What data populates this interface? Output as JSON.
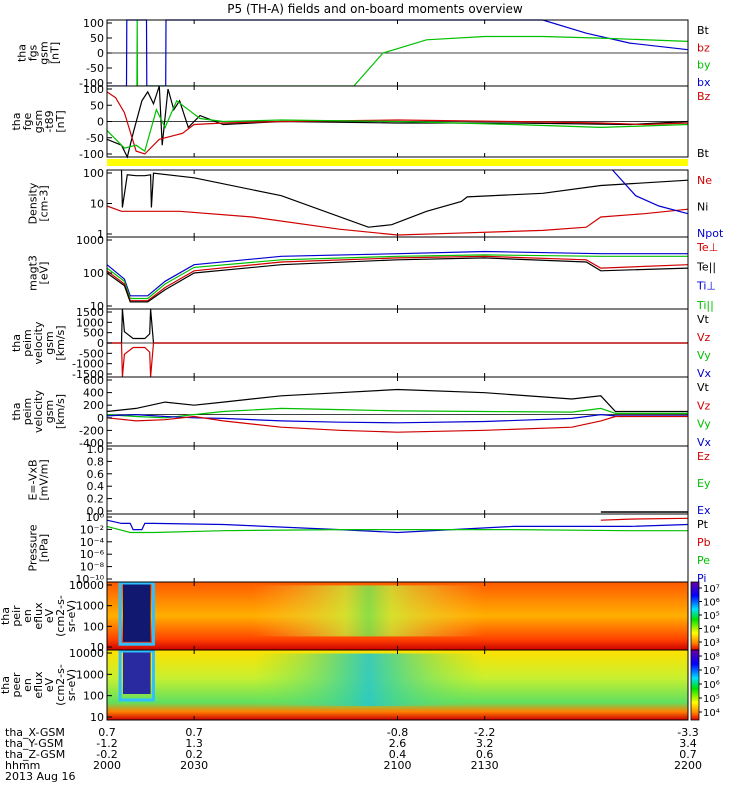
{
  "title": "P5 (TH-A) fields and on-board moments overview",
  "footer": {
    "rows": [
      {
        "label": "tha_X-GSM",
        "values": [
          "0.7",
          "0.7",
          "-0.8",
          "-2.2",
          "-3.3"
        ]
      },
      {
        "label": "tha_Y-GSM",
        "values": [
          "-1.2",
          "1.3",
          "2.6",
          "3.2",
          "3.4"
        ]
      },
      {
        "label": "tha_Z-GSM",
        "values": [
          "-0.2",
          "0.2",
          "0.4",
          "0.6",
          "0.7"
        ]
      },
      {
        "label": "hhmm",
        "values": [
          "2000",
          "2030",
          "2100",
          "2130",
          "2200"
        ]
      }
    ],
    "date": "2013 Aug 16"
  },
  "chart_data": [
    {
      "id": "fgs",
      "type": "line",
      "ylabel": [
        "tha",
        "fgs",
        "gsm",
        "[nT]"
      ],
      "ylim": [
        -100,
        100
      ],
      "yticks": [
        "100",
        "50",
        "0",
        "-50",
        "-100"
      ],
      "legend": [
        {
          "name": "Bt",
          "color": "#000000"
        },
        {
          "name": "bz",
          "color": "#d00000"
        },
        {
          "name": "by",
          "color": "#00c000"
        },
        {
          "name": "bx",
          "color": "#0000d0"
        }
      ],
      "series": [
        {
          "name": "bx",
          "color": "#0000d0",
          "x": [
            2000,
            2006.7,
            2006.8,
            2013.6,
            2013.7,
            2020.2,
            2020.3,
            2150,
            2165,
            2180,
            2200
          ],
          "y": [
            -100,
            -100,
            100,
            100,
            -100,
            -100,
            100,
            100,
            60,
            30,
            10
          ]
        },
        {
          "name": "by",
          "color": "#00c000",
          "x": [
            2010.3,
            2010.4,
            2010.5,
            2085,
            2095,
            2110,
            2130,
            2150,
            2170,
            2200
          ],
          "y": [
            -100,
            100,
            -100,
            -100,
            0,
            40,
            50,
            50,
            45,
            35
          ]
        }
      ]
    },
    {
      "id": "fgs-dt89",
      "type": "line",
      "ylabel": [
        "tha",
        "fge",
        "gsm",
        "-t89",
        "[nT]"
      ],
      "ylim": [
        -120,
        120
      ],
      "yticks": [
        "100",
        "50",
        "0",
        "-50",
        "-100"
      ],
      "legend": [
        {
          "name": "Bz",
          "color": "#d00000"
        },
        {
          "name": "Bt",
          "color": "#000000"
        }
      ],
      "series": [
        {
          "name": "Bt",
          "color": "#000000",
          "x": [
            2000,
            2005,
            2007,
            2009,
            2012,
            2014,
            2016,
            2018,
            2019,
            2021,
            2023,
            2025,
            2028,
            2032,
            2040,
            2060,
            2100,
            2140,
            2180,
            2200
          ],
          "y": [
            -60,
            -80,
            -120,
            -40,
            70,
            100,
            60,
            120,
            -80,
            110,
            40,
            70,
            -20,
            20,
            -10,
            0,
            -5,
            -5,
            -10,
            0
          ]
        },
        {
          "name": "Bz",
          "color": "#d00000",
          "x": [
            2000,
            2003,
            2006,
            2010,
            2013,
            2018,
            2022,
            2026,
            2030,
            2040,
            2060,
            2100,
            2140,
            2170,
            2185,
            2200
          ],
          "y": [
            100,
            80,
            30,
            -100,
            -110,
            -60,
            -50,
            -40,
            -10,
            -5,
            0,
            5,
            0,
            -5,
            -10,
            -5
          ]
        },
        {
          "name": "Bx",
          "color": "#00c000",
          "x": [
            2000,
            2003,
            2006,
            2010,
            2013,
            2017,
            2020,
            2024,
            2028,
            2032,
            2040,
            2060,
            2100,
            2140,
            2170,
            2200
          ],
          "y": [
            -30,
            -60,
            -90,
            -80,
            -100,
            40,
            -20,
            70,
            40,
            10,
            0,
            5,
            0,
            -10,
            -20,
            -10
          ]
        }
      ]
    },
    {
      "id": "density",
      "type": "line",
      "ylabel": [
        "Density",
        "[cm-3]"
      ],
      "yscale": "log",
      "ylim": [
        0.5,
        200
      ],
      "yticks": [
        "100",
        "10",
        "1"
      ],
      "legend": [
        {
          "name": "Ne",
          "color": "#d00000"
        },
        {
          "name": "Ni",
          "color": "#000000"
        },
        {
          "name": "Npot",
          "color": "#0000d0"
        }
      ],
      "series": [
        {
          "name": "Ni",
          "color": "#000000",
          "x": [
            2005,
            2005.3,
            2007,
            2010,
            2013,
            2015,
            2015.3,
            2016,
            2030,
            2060,
            2090,
            2098,
            2110,
            2122,
            2124,
            2150,
            2170,
            2200
          ],
          "y": [
            200,
            7,
            130,
            120,
            120,
            130,
            7,
            150,
            100,
            20,
            1.2,
            1.5,
            5,
            12,
            18,
            25,
            50,
            80
          ]
        },
        {
          "name": "Ne",
          "color": "#d00000",
          "x": [
            2000,
            2005,
            2010,
            2016,
            2025,
            2050,
            2080,
            2100,
            2120,
            2150,
            2165,
            2170,
            2185,
            2200
          ],
          "y": [
            8,
            5,
            5,
            5,
            5,
            3,
            1,
            0.6,
            0.7,
            0.9,
            1.2,
            3,
            4,
            6
          ]
        },
        {
          "name": "Npot",
          "color": "#0000d0",
          "x": [
            2174,
            2182,
            2190,
            2200
          ],
          "y": [
            200,
            20,
            8,
            4
          ]
        }
      ]
    },
    {
      "id": "temperature",
      "type": "line",
      "ylabel": [
        "magt3",
        "[eV]"
      ],
      "yscale": "log",
      "ylim": [
        5,
        2000
      ],
      "yticks": [
        "1000",
        "100",
        "10"
      ],
      "legend": [
        {
          "name": "Te⊥",
          "color": "#d00000"
        },
        {
          "name": "Te||",
          "color": "#000000"
        },
        {
          "name": "Ti⊥",
          "color": "#0000d0"
        },
        {
          "name": "Ti||",
          "color": "#00c000"
        }
      ],
      "series": [
        {
          "name": "Ti⊥",
          "color": "#0000d0",
          "x": [
            2000,
            2006,
            2008,
            2014,
            2020,
            2030,
            2060,
            2100,
            2130,
            2170,
            2200
          ],
          "y": [
            200,
            60,
            15,
            15,
            50,
            200,
            400,
            500,
            600,
            500,
            500
          ]
        },
        {
          "name": "Ti||",
          "color": "#00c000",
          "x": [
            2000,
            2006,
            2008,
            2014,
            2020,
            2030,
            2060,
            2100,
            2130,
            2170,
            2200
          ],
          "y": [
            150,
            50,
            12,
            12,
            40,
            160,
            300,
            400,
            450,
            400,
            400
          ]
        },
        {
          "name": "Te⊥",
          "color": "#d00000",
          "x": [
            2000,
            2006,
            2008,
            2014,
            2020,
            2030,
            2060,
            2100,
            2130,
            2165,
            2170,
            2200
          ],
          "y": [
            120,
            40,
            10,
            10,
            30,
            120,
            250,
            350,
            400,
            300,
            150,
            200
          ]
        },
        {
          "name": "Te||",
          "color": "#000000",
          "x": [
            2000,
            2006,
            2008,
            2014,
            2020,
            2030,
            2060,
            2100,
            2130,
            2165,
            2170,
            2200
          ],
          "y": [
            100,
            35,
            9,
            9,
            25,
            100,
            200,
            300,
            350,
            250,
            120,
            150
          ]
        }
      ]
    },
    {
      "id": "esa-velocity",
      "type": "line",
      "ylabel": [
        "tha",
        "peim",
        "velocity",
        "gsm",
        "[km/s]"
      ],
      "ylim": [
        -1500,
        1500
      ],
      "yticks": [
        "1500",
        "1000",
        "500",
        "0",
        "-500",
        "-1000",
        "-1500"
      ],
      "legend": [
        {
          "name": "Vt",
          "color": "#000000"
        },
        {
          "name": "Vz",
          "color": "#d00000"
        },
        {
          "name": "Vy",
          "color": "#00c000"
        },
        {
          "name": "Vx",
          "color": "#0000d0"
        }
      ],
      "series": [
        {
          "name": "Vt",
          "color": "#000000",
          "x": [
            2000,
            2005,
            2005.3,
            2006,
            2009,
            2013,
            2014.7,
            2015,
            2016,
            2200
          ],
          "y": [
            0,
            0,
            1500,
            500,
            200,
            200,
            400,
            1500,
            0,
            0
          ]
        },
        {
          "name": "Vz",
          "color": "#d00000",
          "x": [
            2000,
            2005,
            2005.3,
            2006,
            2009,
            2013,
            2014.7,
            2015,
            2016,
            2200
          ],
          "y": [
            0,
            0,
            -1500,
            -500,
            -200,
            -200,
            -400,
            -1500,
            0,
            0
          ]
        }
      ]
    },
    {
      "id": "esa-velocity-reduced",
      "type": "line",
      "ylabel": [
        "tha",
        "peim",
        "velocity",
        "gsm",
        "[km/s]"
      ],
      "ylim": [
        -500,
        600
      ],
      "yticks": [
        "600",
        "400",
        "200",
        "0",
        "-200",
        "-400"
      ],
      "legend": [
        {
          "name": "Vt",
          "color": "#000000"
        },
        {
          "name": "Vz",
          "color": "#d00000"
        },
        {
          "name": "Vy",
          "color": "#00c000"
        },
        {
          "name": "Vx",
          "color": "#0000d0"
        }
      ],
      "series": [
        {
          "name": "Vt",
          "color": "#000000",
          "x": [
            2000,
            2010,
            2020,
            2030,
            2040,
            2060,
            2080,
            2100,
            2130,
            2160,
            2170,
            2175,
            2200
          ],
          "y": [
            50,
            100,
            200,
            150,
            200,
            300,
            350,
            400,
            350,
            250,
            300,
            50,
            50
          ]
        },
        {
          "name": "Vy",
          "color": "#00c000",
          "x": [
            2000,
            2010,
            2020,
            2030,
            2040,
            2060,
            2080,
            2100,
            2130,
            2160,
            2170,
            2175,
            2200
          ],
          "y": [
            0,
            -30,
            -50,
            0,
            50,
            100,
            80,
            60,
            50,
            40,
            100,
            20,
            20
          ]
        },
        {
          "name": "Vx",
          "color": "#0000d0",
          "x": [
            2000,
            2010,
            2020,
            2030,
            2040,
            2060,
            2080,
            2100,
            2130,
            2160,
            2170,
            2175,
            2200
          ],
          "y": [
            -20,
            0,
            -30,
            -50,
            -60,
            -100,
            -120,
            -130,
            -110,
            -60,
            0,
            -20,
            -20
          ]
        },
        {
          "name": "Vz",
          "color": "#d00000",
          "x": [
            2000,
            2010,
            2020,
            2030,
            2040,
            2060,
            2080,
            2100,
            2130,
            2160,
            2170,
            2175,
            2200
          ],
          "y": [
            -50,
            -100,
            -80,
            -30,
            -100,
            -200,
            -250,
            -280,
            -250,
            -200,
            -100,
            -30,
            -30
          ]
        }
      ]
    },
    {
      "id": "efield",
      "type": "line",
      "ylabel": [
        "E=-VxB",
        "[mV/m]"
      ],
      "ylim": [
        0,
        1
      ],
      "yticks": [
        "1.0",
        "0.8",
        "0.6",
        "0.4",
        "0.2",
        "0.0"
      ],
      "legend": [
        {
          "name": "Ez",
          "color": "#d00000"
        },
        {
          "name": "Ey",
          "color": "#00c000"
        },
        {
          "name": "Ex",
          "color": "#0000d0"
        }
      ],
      "series": []
    },
    {
      "id": "pressure",
      "type": "line",
      "ylabel": [
        "Pressure",
        "[nPa]"
      ],
      "yscale": "log",
      "ylim": [
        1e-10,
        10
      ],
      "yticks": [
        "10⁰",
        "10⁻²",
        "10⁻⁴",
        "10⁻⁶",
        "10⁻⁸",
        "10⁻¹⁰"
      ],
      "legend": [
        {
          "name": "Pt",
          "color": "#000000"
        },
        {
          "name": "Pb",
          "color": "#d00000"
        },
        {
          "name": "Pe",
          "color": "#00c000"
        },
        {
          "name": "Pi",
          "color": "#0000d0"
        }
      ],
      "series": [
        {
          "name": "Pi",
          "color": "#0000d0",
          "x": [
            2000,
            2005,
            2008,
            2009,
            2012,
            2013,
            2016,
            2040,
            2080,
            2100,
            2140,
            2180,
            2200
          ],
          "y": [
            1,
            0.3,
            0.3,
            0.03,
            0.03,
            0.3,
            0.3,
            0.2,
            0.03,
            0.01,
            0.1,
            0.1,
            0.2
          ]
        },
        {
          "name": "Pe",
          "color": "#00c000",
          "x": [
            2000,
            2008,
            2016,
            2040,
            2080,
            2100,
            2140,
            2180,
            2200
          ],
          "y": [
            0.1,
            0.01,
            0.01,
            0.02,
            0.03,
            0.03,
            0.03,
            0.02,
            0.02
          ]
        },
        {
          "name": "Pb",
          "color": "#d00000",
          "x": [
            2170,
            2180,
            2200
          ],
          "y": [
            1,
            1.5,
            2
          ]
        }
      ]
    },
    {
      "id": "ion-spectrogram",
      "type": "heatmap",
      "ylabel": [
        "tha",
        "peir",
        "en",
        "eflux",
        "eV",
        "(cm2-s-",
        "sr-eV)"
      ],
      "yscale": "log",
      "ylim": [
        7,
        30000
      ],
      "yticks": [
        "10000",
        "1000",
        "100",
        "10"
      ],
      "colorbar": {
        "min_exp": 3,
        "max_exp": 7,
        "labels": [
          "10³",
          "10⁴",
          "10⁵",
          "10⁶",
          "10⁷"
        ]
      }
    },
    {
      "id": "electron-spectrogram",
      "type": "heatmap",
      "ylabel": [
        "tha",
        "peer",
        "en",
        "eflux",
        "eV",
        "(cm2-s-",
        "sr-eV)"
      ],
      "yscale": "log",
      "ylim": [
        7,
        30000
      ],
      "yticks": [
        "10000",
        "1000",
        "100",
        "10"
      ],
      "colorbar": {
        "min_exp": 4,
        "max_exp": 8,
        "labels": [
          "10⁴",
          "10⁵",
          "10⁶",
          "10⁷",
          "10⁸"
        ]
      }
    }
  ]
}
